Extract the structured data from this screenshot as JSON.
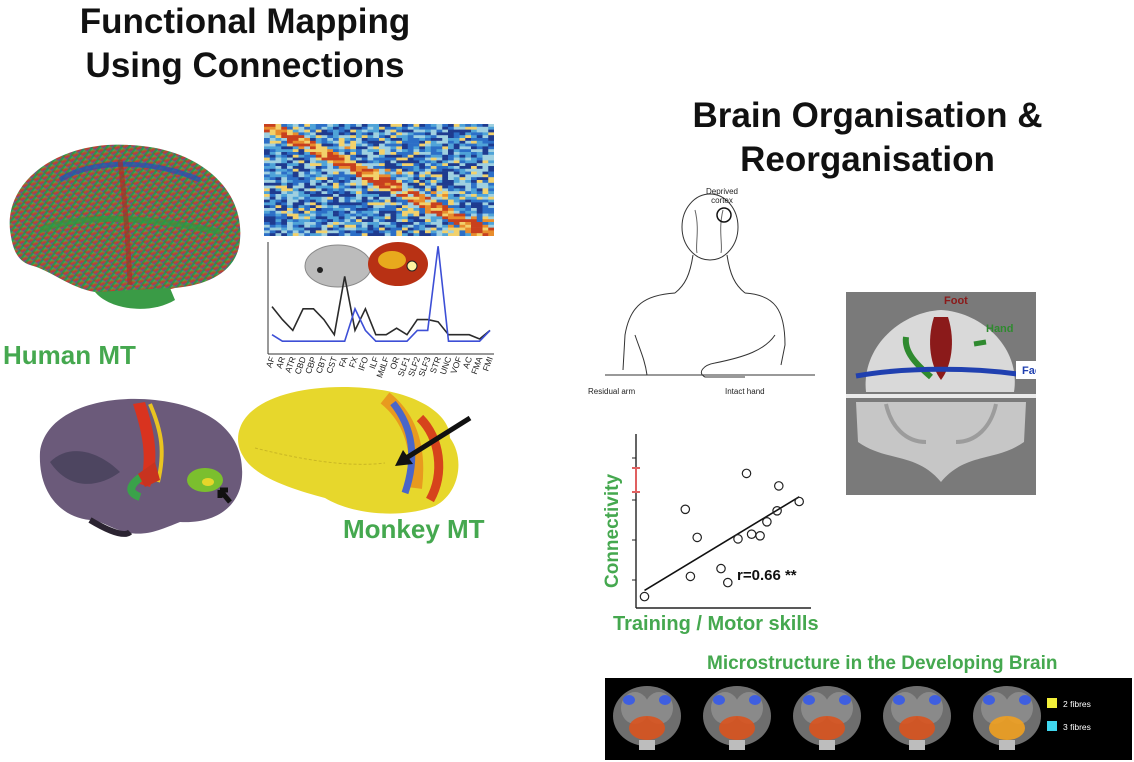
{
  "left_title": {
    "line1": "Functional Mapping",
    "line2": "Using Connections"
  },
  "right_title": {
    "line1": "Brain Organisation &",
    "line2": "Reorganisation"
  },
  "human_mt_label": "Human MT",
  "monkey_mt_label": "Monkey MT",
  "tract_profile": {
    "tracts": [
      "AF",
      "AR",
      "ATR",
      "CBD",
      "CBP",
      "CBT",
      "CST",
      "FA",
      "FX",
      "IFO",
      "ILF",
      "MdLF",
      "OR",
      "SLF1",
      "SLF2",
      "SLF3",
      "STR",
      "UNC",
      "VOF",
      "AC",
      "FMA",
      "FMI"
    ],
    "colors": {
      "human": "#2b2b2b",
      "monkey": "#3d4fd6"
    }
  },
  "amputee_figure": {
    "deprived_cortex": "Deprived\ncortex",
    "residual_arm": "Residual arm",
    "intact_hand": "Intact hand"
  },
  "homunculus": {
    "foot": "Foot",
    "hand": "Hand",
    "face": "Face",
    "colors": {
      "foot": "#8b1a1a",
      "hand": "#2f8a2f",
      "face": "#2040b0"
    }
  },
  "chart_data": {
    "type": "scatter",
    "xlabel": "Training / Motor skills",
    "ylabel": "Connectivity",
    "annotation": "r=0.66 **",
    "points": [
      [
        0.05,
        0.06
      ],
      [
        0.32,
        0.19
      ],
      [
        0.29,
        0.62
      ],
      [
        0.36,
        0.44
      ],
      [
        0.5,
        0.24
      ],
      [
        0.54,
        0.15
      ],
      [
        0.6,
        0.43
      ],
      [
        0.65,
        0.85
      ],
      [
        0.68,
        0.46
      ],
      [
        0.73,
        0.45
      ],
      [
        0.77,
        0.54
      ],
      [
        0.83,
        0.61
      ],
      [
        0.84,
        0.77
      ],
      [
        0.96,
        0.67
      ]
    ],
    "fit": [
      [
        0.05,
        0.1
      ],
      [
        0.96,
        0.7
      ]
    ]
  },
  "developing_brain": {
    "title": "Microstructure in the Developing Brain",
    "legend": [
      {
        "label": "2 fibres",
        "color": "#f2ef3a"
      },
      {
        "label": "3 fibres",
        "color": "#40d6ee"
      }
    ]
  }
}
